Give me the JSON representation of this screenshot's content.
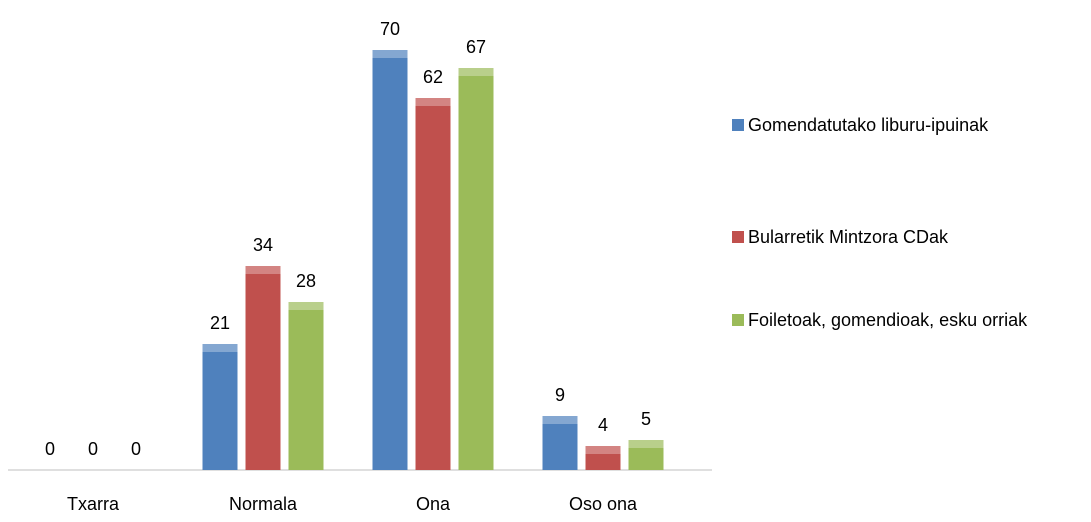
{
  "chart_data": {
    "type": "bar",
    "categories": [
      "Txarra",
      "Normala",
      "Ona",
      "Oso ona"
    ],
    "series": [
      {
        "name": "Gomendatutako liburu-ipuinak",
        "color": "#4f81bd",
        "values": [
          0,
          21,
          70,
          9
        ]
      },
      {
        "name": "Bularretik Mintzora CDak",
        "color": "#c0504d",
        "values": [
          0,
          34,
          62,
          4
        ]
      },
      {
        "name": "Foiletoak, gomendioak, esku orriak",
        "color": "#9bbb59",
        "values": [
          0,
          28,
          67,
          5
        ]
      }
    ],
    "legend": "right"
  }
}
